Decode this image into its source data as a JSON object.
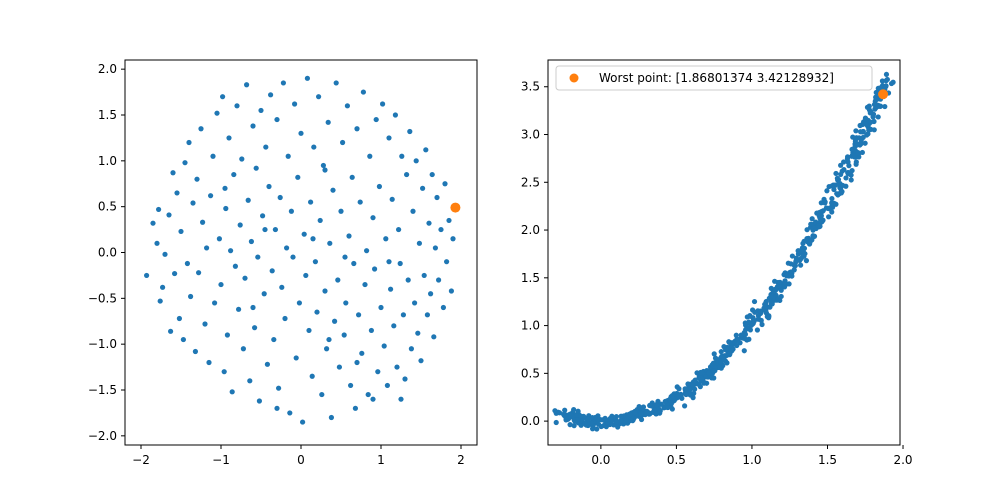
{
  "chart_data": [
    {
      "type": "scatter",
      "title": "",
      "xlabel": "",
      "ylabel": "",
      "xlim": [
        -2.2,
        2.2
      ],
      "ylim": [
        -2.1,
        2.1
      ],
      "xticks": [
        -2,
        -1,
        0,
        1,
        2
      ],
      "xtick_labels": [
        "−2",
        "−1",
        "0",
        "1",
        "2"
      ],
      "yticks": [
        -2.0,
        -1.5,
        -1.0,
        -0.5,
        0.0,
        0.5,
        1.0,
        1.5,
        2.0
      ],
      "ytick_labels": [
        "−2.0",
        "−1.5",
        "−1.0",
        "−0.5",
        "0.0",
        "0.5",
        "1.0",
        "1.5",
        "2.0"
      ],
      "grid": false,
      "series": [
        {
          "color": "#1f77b4",
          "points": [
            [
              -1.93,
              -0.25
            ],
            [
              -1.85,
              0.32
            ],
            [
              -1.8,
              0.1
            ],
            [
              -1.78,
              0.47
            ],
            [
              -1.76,
              -0.53
            ],
            [
              -1.73,
              -0.38
            ],
            [
              -1.7,
              -0.02
            ],
            [
              -1.65,
              0.41
            ],
            [
              -1.63,
              -0.86
            ],
            [
              -1.6,
              0.87
            ],
            [
              -1.58,
              -0.23
            ],
            [
              -1.55,
              0.65
            ],
            [
              -1.52,
              -0.72
            ],
            [
              -1.5,
              0.23
            ],
            [
              -1.47,
              -0.95
            ],
            [
              -1.45,
              0.98
            ],
            [
              -1.42,
              -0.12
            ],
            [
              -1.4,
              1.2
            ],
            [
              -1.38,
              -0.48
            ],
            [
              -1.35,
              0.54
            ],
            [
              -1.32,
              -1.08
            ],
            [
              -1.3,
              0.8
            ],
            [
              -1.28,
              -0.22
            ],
            [
              -1.25,
              1.35
            ],
            [
              -1.23,
              0.33
            ],
            [
              -1.2,
              -0.78
            ],
            [
              -1.18,
              0.05
            ],
            [
              -1.15,
              -1.2
            ],
            [
              -1.13,
              0.62
            ],
            [
              -1.1,
              1.05
            ],
            [
              -1.08,
              -0.55
            ],
            [
              -1.05,
              1.52
            ],
            [
              -1.02,
              0.15
            ],
            [
              -1.0,
              -0.35
            ],
            [
              -0.98,
              1.7
            ],
            [
              -0.96,
              -1.3
            ],
            [
              -0.94,
              0.48
            ],
            [
              -0.92,
              -0.9
            ],
            [
              -0.9,
              1.25
            ],
            [
              -0.88,
              0.02
            ],
            [
              -0.86,
              -1.52
            ],
            [
              -0.84,
              0.85
            ],
            [
              -0.82,
              -0.15
            ],
            [
              -0.8,
              1.6
            ],
            [
              -0.78,
              -0.62
            ],
            [
              -0.76,
              0.3
            ],
            [
              -0.74,
              1.02
            ],
            [
              -0.72,
              -1.05
            ],
            [
              -0.7,
              -0.28
            ],
            [
              -0.68,
              1.83
            ],
            [
              -0.66,
              0.57
            ],
            [
              -0.64,
              -1.4
            ],
            [
              -0.62,
              0.12
            ],
            [
              -0.6,
              1.38
            ],
            [
              -0.58,
              -0.82
            ],
            [
              -0.56,
              0.92
            ],
            [
              -0.54,
              -0.05
            ],
            [
              -0.52,
              -1.62
            ],
            [
              -0.5,
              1.55
            ],
            [
              -0.48,
              0.4
            ],
            [
              -0.46,
              -0.45
            ],
            [
              -0.44,
              1.15
            ],
            [
              -0.42,
              -1.22
            ],
            [
              -0.4,
              0.72
            ],
            [
              -0.38,
              1.72
            ],
            [
              -0.36,
              -0.2
            ],
            [
              -0.34,
              -0.95
            ],
            [
              -0.32,
              0.25
            ],
            [
              -0.3,
              1.45
            ],
            [
              -0.28,
              -1.48
            ],
            [
              -0.26,
              0.6
            ],
            [
              -0.24,
              -0.38
            ],
            [
              -0.22,
              1.85
            ],
            [
              -0.2,
              -0.72
            ],
            [
              -0.18,
              0.05
            ],
            [
              -0.16,
              1.05
            ],
            [
              -0.14,
              -1.75
            ],
            [
              -0.12,
              0.45
            ],
            [
              -0.1,
              -0.05
            ],
            [
              -0.08,
              1.62
            ],
            [
              -0.06,
              -1.15
            ],
            [
              -0.04,
              0.82
            ],
            [
              -0.02,
              -0.55
            ],
            [
              0.0,
              1.3
            ],
            [
              0.02,
              -1.85
            ],
            [
              0.04,
              0.2
            ],
            [
              0.06,
              -0.25
            ],
            [
              0.08,
              1.9
            ],
            [
              0.1,
              -0.85
            ],
            [
              0.12,
              0.55
            ],
            [
              0.14,
              -1.35
            ],
            [
              0.16,
              1.15
            ],
            [
              0.18,
              -0.1
            ],
            [
              0.2,
              -0.65
            ],
            [
              0.22,
              1.7
            ],
            [
              0.24,
              0.35
            ],
            [
              0.26,
              -1.55
            ],
            [
              0.28,
              0.95
            ],
            [
              0.3,
              -0.42
            ],
            [
              0.32,
              -1.05
            ],
            [
              0.34,
              1.42
            ],
            [
              0.36,
              0.1
            ],
            [
              0.38,
              -1.8
            ],
            [
              0.4,
              0.68
            ],
            [
              0.42,
              -0.75
            ],
            [
              0.44,
              1.85
            ],
            [
              0.46,
              -0.3
            ],
            [
              0.48,
              -1.25
            ],
            [
              0.5,
              0.45
            ],
            [
              0.52,
              1.2
            ],
            [
              0.54,
              -0.9
            ],
            [
              0.56,
              -0.55
            ],
            [
              0.58,
              1.6
            ],
            [
              0.6,
              0.18
            ],
            [
              0.62,
              -1.45
            ],
            [
              0.64,
              0.82
            ],
            [
              0.66,
              -0.12
            ],
            [
              0.68,
              -1.7
            ],
            [
              0.7,
              1.35
            ],
            [
              0.72,
              -0.68
            ],
            [
              0.74,
              0.55
            ],
            [
              0.76,
              -1.1
            ],
            [
              0.78,
              1.75
            ],
            [
              0.8,
              -0.35
            ],
            [
              0.82,
              0.02
            ],
            [
              0.84,
              -1.55
            ],
            [
              0.86,
              1.05
            ],
            [
              0.88,
              -0.85
            ],
            [
              0.9,
              0.38
            ],
            [
              0.92,
              -0.18
            ],
            [
              0.94,
              1.45
            ],
            [
              0.96,
              -1.3
            ],
            [
              0.98,
              0.72
            ],
            [
              1.0,
              -0.6
            ],
            [
              1.02,
              1.62
            ],
            [
              1.04,
              -1.02
            ],
            [
              1.06,
              0.15
            ],
            [
              1.08,
              -1.45
            ],
            [
              1.1,
              1.25
            ],
            [
              1.12,
              -0.4
            ],
            [
              1.14,
              0.58
            ],
            [
              1.16,
              -0.8
            ],
            [
              1.18,
              1.5
            ],
            [
              1.2,
              -1.25
            ],
            [
              1.22,
              0.25
            ],
            [
              1.24,
              -0.12
            ],
            [
              1.26,
              1.05
            ],
            [
              1.28,
              -0.68
            ],
            [
              1.3,
              -1.38
            ],
            [
              1.32,
              0.85
            ],
            [
              1.34,
              -0.3
            ],
            [
              1.36,
              1.32
            ],
            [
              1.38,
              -1.05
            ],
            [
              1.4,
              0.45
            ],
            [
              1.42,
              -0.55
            ],
            [
              1.44,
              1.0
            ],
            [
              1.46,
              -0.88
            ],
            [
              1.48,
              0.1
            ],
            [
              1.5,
              -1.18
            ],
            [
              1.52,
              0.7
            ],
            [
              1.54,
              -0.25
            ],
            [
              1.56,
              1.12
            ],
            [
              1.58,
              -0.68
            ],
            [
              1.6,
              0.32
            ],
            [
              1.62,
              -0.45
            ],
            [
              1.64,
              0.85
            ],
            [
              1.66,
              -0.92
            ],
            [
              1.68,
              0.05
            ],
            [
              1.7,
              0.6
            ],
            [
              1.72,
              -0.3
            ],
            [
              1.75,
              0.25
            ],
            [
              1.78,
              -0.6
            ],
            [
              1.8,
              0.75
            ],
            [
              1.82,
              -0.1
            ],
            [
              1.85,
              0.35
            ],
            [
              1.88,
              -0.42
            ],
            [
              1.9,
              0.15
            ],
            [
              -0.95,
              0.7
            ],
            [
              -0.6,
              -0.6
            ],
            [
              0.3,
              0.9
            ],
            [
              0.7,
              -1.2
            ],
            [
              1.1,
              -0.1
            ],
            [
              -0.3,
              -1.7
            ],
            [
              0.15,
              0.15
            ],
            [
              0.55,
              -0.05
            ],
            [
              -0.45,
              0.25
            ],
            [
              0.9,
              -1.6
            ],
            [
              1.25,
              -1.6
            ],
            [
              0.35,
              -0.95
            ]
          ]
        },
        {
          "color": "#ff7f0e",
          "points": [
            [
              1.93,
              0.49
            ]
          ]
        }
      ]
    },
    {
      "type": "scatter",
      "title": "",
      "xlabel": "",
      "ylabel": "",
      "xlim": [
        -0.35,
        1.98
      ],
      "ylim": [
        -0.25,
        3.78
      ],
      "xticks": [
        0.0,
        0.5,
        1.0,
        1.5,
        2.0
      ],
      "xtick_labels": [
        "0.0",
        "0.5",
        "1.0",
        "1.5",
        "2.0"
      ],
      "yticks": [
        0.0,
        0.5,
        1.0,
        1.5,
        2.0,
        2.5,
        3.0,
        3.5
      ],
      "ytick_labels": [
        "0.0",
        "0.5",
        "1.0",
        "1.5",
        "2.0",
        "2.5",
        "3.0",
        "3.5"
      ],
      "grid": false,
      "legend": {
        "placement": "upper left",
        "entries": [
          "Worst point: [1.86801374 3.42128932]"
        ]
      },
      "series": [
        {
          "color": "#1f77b4",
          "curve": {
            "formula": "y = x^2",
            "x_min": -0.27,
            "x_max": 1.9,
            "points": 700,
            "jitter": 0.07
          }
        },
        {
          "name": "Worst point: [1.86801374 3.42128932]",
          "color": "#ff7f0e",
          "points": [
            [
              1.86801374,
              3.42128932
            ]
          ]
        }
      ]
    }
  ]
}
